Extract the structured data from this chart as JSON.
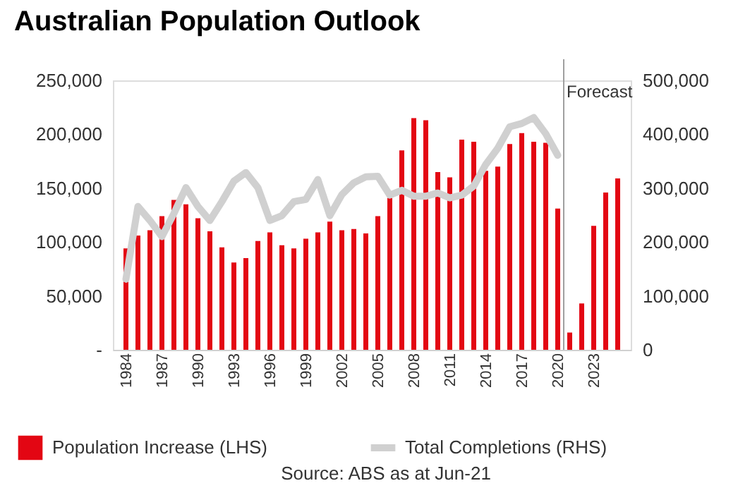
{
  "chart_data": {
    "type": "bar",
    "title": "Australian Population Outlook",
    "x": [
      1984,
      1985,
      1986,
      1987,
      1988,
      1989,
      1990,
      1991,
      1992,
      1993,
      1994,
      1995,
      1996,
      1997,
      1998,
      1999,
      2000,
      2001,
      2002,
      2003,
      2004,
      2005,
      2006,
      2007,
      2008,
      2009,
      2010,
      2011,
      2012,
      2013,
      2014,
      2015,
      2016,
      2017,
      2018,
      2019,
      2020,
      2021,
      2022,
      2023,
      2024,
      2025
    ],
    "series": [
      {
        "name": "Population Increase (LHS)",
        "type": "bar",
        "color": "#e30613",
        "values": [
          94000,
          106000,
          111000,
          124000,
          139000,
          135000,
          122000,
          110000,
          95000,
          81000,
          85000,
          101000,
          109000,
          97000,
          94000,
          103000,
          109000,
          119000,
          111000,
          112000,
          108000,
          124000,
          141000,
          185000,
          215000,
          213000,
          165000,
          160000,
          195000,
          193000,
          166000,
          170000,
          191000,
          201000,
          193000,
          192000,
          131000,
          16000,
          43000,
          115000,
          146000,
          159000
        ]
      },
      {
        "name": "Total Completions (RHS)",
        "type": "line",
        "axis": "y2",
        "color": "#d0d0d0",
        "values": [
          131000,
          266000,
          240000,
          210000,
          253000,
          301000,
          266000,
          240000,
          275000,
          313000,
          329000,
          301000,
          240000,
          249000,
          275000,
          279000,
          316000,
          249000,
          288000,
          310000,
          321000,
          322000,
          287000,
          296000,
          285000,
          285000,
          291000,
          282000,
          287000,
          304000,
          344000,
          374000,
          414000,
          420000,
          431000,
          401000,
          361000,
          null,
          null,
          null,
          null,
          null
        ]
      }
    ],
    "xlim": [
      1983.5,
      2025.5
    ],
    "xticks": [
      1984,
      1987,
      1990,
      1993,
      1996,
      1999,
      2002,
      2005,
      2008,
      2011,
      2014,
      2017,
      2020,
      2023
    ],
    "ylim": [
      0,
      250000
    ],
    "yticks": [
      {
        "value": 0,
        "label": "-"
      },
      {
        "value": 50000,
        "label": "50,000"
      },
      {
        "value": 100000,
        "label": "100,000"
      },
      {
        "value": 150000,
        "label": "150,000"
      },
      {
        "value": 200000,
        "label": "200,000"
      },
      {
        "value": 250000,
        "label": "250,000"
      }
    ],
    "y2lim": [
      0,
      500000
    ],
    "y2ticks": [
      0,
      {
        "value": 100000,
        "label": "100,000"
      },
      {
        "value": 200000,
        "label": "200,000"
      },
      {
        "value": 300000,
        "label": "300,000"
      },
      {
        "value": 400000,
        "label": "400,000"
      },
      {
        "value": 500000,
        "label": "500,000"
      }
    ],
    "ref_lines": [
      {
        "axis": "x",
        "value": 2020.5,
        "label": "Forecast",
        "color": "#a0a0a0"
      }
    ],
    "annotations": [
      "Source: ABS as at Jun-21"
    ],
    "grid": false,
    "legend": "bottom"
  }
}
